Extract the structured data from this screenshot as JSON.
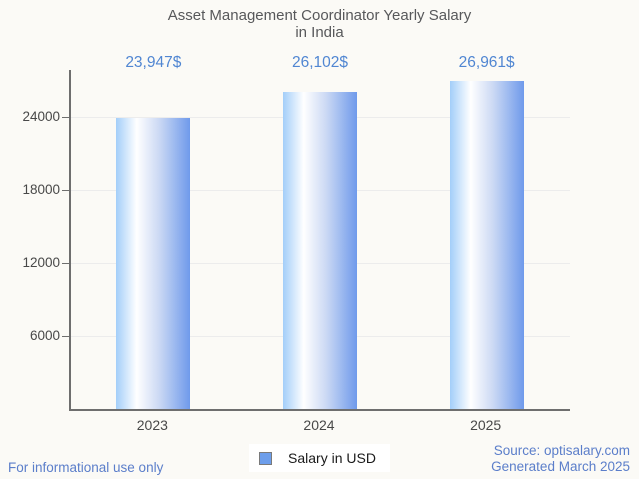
{
  "title": {
    "line1": "Asset Management Coordinator Yearly Salary",
    "line2": "in India"
  },
  "chart_data": {
    "type": "bar",
    "title": "Asset Management Coordinator Yearly Salary in India",
    "categories": [
      "2023",
      "2024",
      "2025"
    ],
    "series": [
      {
        "name": "Salary in USD",
        "values": [
          23947,
          26102,
          26961
        ]
      }
    ],
    "value_labels": [
      "23,947$",
      "26,102$",
      "26,961$"
    ],
    "xlabel": "",
    "ylabel": "",
    "ylim": [
      0,
      27900
    ],
    "yticks": [
      6000,
      12000,
      18000,
      24000
    ],
    "grid": true,
    "legend_position": "bottom",
    "colors": {
      "bar_gradient_left": "#a3cef9",
      "bar_gradient_mid": "#ffffff",
      "bar_gradient_right": "#6f9aeb",
      "value_label": "#5086d2",
      "axis": "#6e6e6e",
      "gridline": "#ececec",
      "tick_text": "#484848",
      "legend_marker": "#6d9eeb",
      "footer_text": "#5b7eca",
      "title_text": "#57585a",
      "background": "#fbfaf6"
    }
  },
  "legend": {
    "label": "Salary in USD"
  },
  "footer": {
    "left": "For informational use only",
    "source": "Source: optisalary.com",
    "generated": "Generated March 2025"
  }
}
